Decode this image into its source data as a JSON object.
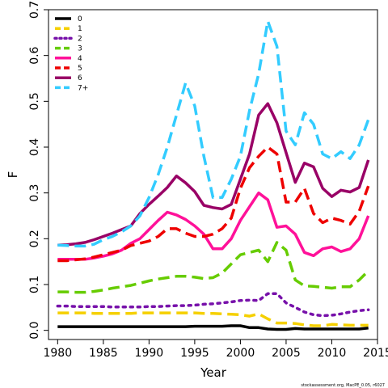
{
  "chart_data": {
    "type": "line",
    "xlabel": "Year",
    "ylabel": "F",
    "xlim": [
      1979,
      2015
    ],
    "ylim": [
      -0.02,
      0.7
    ],
    "xticks": [
      1980,
      1985,
      1990,
      1995,
      2000,
      2005,
      2010,
      2015
    ],
    "yticks": [
      0.0,
      0.1,
      0.2,
      0.3,
      0.4,
      0.5,
      0.6,
      0.7
    ],
    "ytick_labels": [
      "0.0",
      "0.1",
      "0.2",
      "0.3",
      "0.4",
      "0.5",
      "0.6",
      "0.7"
    ],
    "legend_position": "top-left",
    "grid": false,
    "credit": "stockassessment.org, MacPE_0.05, r6027",
    "x": [
      1980,
      1981,
      1982,
      1983,
      1984,
      1985,
      1986,
      1987,
      1988,
      1989,
      1990,
      1991,
      1992,
      1993,
      1994,
      1995,
      1996,
      1997,
      1998,
      1999,
      2000,
      2001,
      2002,
      2003,
      2004,
      2005,
      2006,
      2007,
      2008,
      2009,
      2010,
      2011,
      2012,
      2013,
      2014
    ],
    "series": [
      {
        "name": "0",
        "color": "#000000",
        "dash": "solid",
        "values": [
          0.008,
          0.008,
          0.008,
          0.008,
          0.008,
          0.008,
          0.008,
          0.008,
          0.008,
          0.008,
          0.008,
          0.008,
          0.008,
          0.008,
          0.008,
          0.009,
          0.009,
          0.009,
          0.009,
          0.01,
          0.01,
          0.006,
          0.006,
          0.003,
          0.002,
          0.002,
          0.004,
          0.003,
          0.003,
          0.003,
          0.003,
          0.003,
          0.003,
          0.003,
          0.005
        ]
      },
      {
        "name": "1",
        "color": "#f5d000",
        "dash": "dash",
        "values": [
          0.038,
          0.038,
          0.038,
          0.038,
          0.037,
          0.037,
          0.037,
          0.037,
          0.037,
          0.038,
          0.038,
          0.038,
          0.038,
          0.038,
          0.038,
          0.038,
          0.037,
          0.037,
          0.036,
          0.035,
          0.034,
          0.031,
          0.036,
          0.025,
          0.016,
          0.016,
          0.015,
          0.012,
          0.01,
          0.01,
          0.013,
          0.012,
          0.011,
          0.011,
          0.011
        ]
      },
      {
        "name": "2",
        "color": "#7711aa",
        "dash": "dot",
        "values": [
          0.053,
          0.053,
          0.052,
          0.052,
          0.052,
          0.052,
          0.051,
          0.051,
          0.051,
          0.051,
          0.052,
          0.052,
          0.053,
          0.054,
          0.054,
          0.055,
          0.057,
          0.058,
          0.06,
          0.062,
          0.065,
          0.066,
          0.065,
          0.08,
          0.08,
          0.06,
          0.05,
          0.04,
          0.034,
          0.032,
          0.033,
          0.036,
          0.04,
          0.043,
          0.045
        ]
      },
      {
        "name": "3",
        "color": "#66cc00",
        "dash": "dash",
        "values": [
          0.084,
          0.084,
          0.083,
          0.083,
          0.085,
          0.088,
          0.092,
          0.095,
          0.098,
          0.103,
          0.108,
          0.112,
          0.115,
          0.118,
          0.118,
          0.116,
          0.113,
          0.115,
          0.125,
          0.145,
          0.165,
          0.17,
          0.175,
          0.15,
          0.192,
          0.175,
          0.11,
          0.097,
          0.096,
          0.094,
          0.092,
          0.095,
          0.095,
          0.11,
          0.13
        ]
      },
      {
        "name": "4",
        "color": "#ff1199",
        "dash": "solid",
        "values": [
          0.155,
          0.155,
          0.155,
          0.155,
          0.158,
          0.162,
          0.167,
          0.175,
          0.19,
          0.2,
          0.22,
          0.24,
          0.258,
          0.252,
          0.242,
          0.228,
          0.21,
          0.178,
          0.178,
          0.2,
          0.24,
          0.27,
          0.3,
          0.285,
          0.225,
          0.228,
          0.21,
          0.17,
          0.163,
          0.178,
          0.182,
          0.172,
          0.178,
          0.2,
          0.25
        ]
      },
      {
        "name": "5",
        "color": "#ee0000",
        "dash": "dash",
        "values": [
          0.152,
          0.152,
          0.154,
          0.156,
          0.16,
          0.165,
          0.17,
          0.175,
          0.185,
          0.19,
          0.195,
          0.205,
          0.222,
          0.222,
          0.212,
          0.205,
          0.205,
          0.21,
          0.222,
          0.245,
          0.31,
          0.355,
          0.38,
          0.4,
          0.385,
          0.28,
          0.28,
          0.31,
          0.255,
          0.235,
          0.245,
          0.24,
          0.232,
          0.26,
          0.315
        ]
      },
      {
        "name": "6",
        "color": "#990066",
        "dash": "solid",
        "values": [
          0.186,
          0.187,
          0.189,
          0.192,
          0.198,
          0.205,
          0.212,
          0.22,
          0.228,
          0.255,
          0.275,
          0.293,
          0.312,
          0.337,
          0.322,
          0.303,
          0.273,
          0.268,
          0.265,
          0.275,
          0.33,
          0.385,
          0.47,
          0.495,
          0.453,
          0.388,
          0.323,
          0.365,
          0.357,
          0.31,
          0.292,
          0.306,
          0.302,
          0.312,
          0.372
        ]
      },
      {
        "name": "7+",
        "color": "#33ccff",
        "dash": "dash",
        "values": [
          0.186,
          0.185,
          0.184,
          0.184,
          0.188,
          0.198,
          0.205,
          0.215,
          0.228,
          0.25,
          0.29,
          0.34,
          0.4,
          0.47,
          0.54,
          0.49,
          0.38,
          0.29,
          0.29,
          0.33,
          0.38,
          0.48,
          0.56,
          0.675,
          0.62,
          0.435,
          0.405,
          0.475,
          0.45,
          0.385,
          0.375,
          0.39,
          0.375,
          0.405,
          0.46
        ]
      }
    ]
  }
}
